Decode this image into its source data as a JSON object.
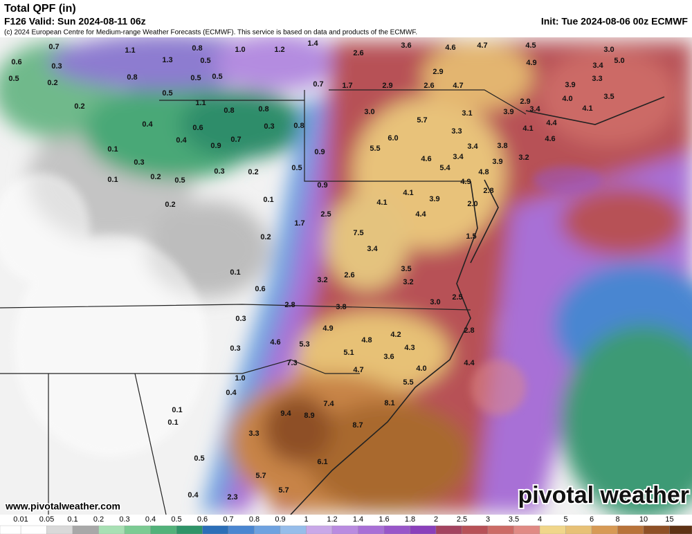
{
  "header": {
    "title": "Total QPF (in)",
    "valid": "F126 Valid: Sun 2024-08-11 06z",
    "init": "Init: Tue 2024-08-06 00z ECMWF",
    "copyright": "(c) 2024 European Centre for Medium-range Weather Forecasts (ECMWF). This service is based on data and products of the ECMWF."
  },
  "map": {
    "labels": [
      "0.7",
      "1.1",
      "1.3",
      "0.8",
      "1.0",
      "1.2",
      "1.4",
      "2.6",
      "3.6",
      "4.6",
      "4.7",
      "4.5",
      "3.0",
      "0.6",
      "0.3",
      "0.5",
      "4.9",
      "5.0",
      "3.4",
      "0.5",
      "0.2",
      "0.8",
      "0.5",
      "0.5",
      "2.9",
      "3.3",
      "0.7",
      "1.7",
      "2.9",
      "2.6",
      "4.7",
      "3.9",
      "0.5",
      "4.0",
      "3.5",
      "0.2",
      "1.1",
      "0.8",
      "0.8",
      "2.9",
      "3.4",
      "4.1",
      "3.0",
      "3.1",
      "3.9",
      "0.4",
      "0.6",
      "0.3",
      "0.8",
      "5.7",
      "3.3",
      "4.1",
      "4.4",
      "4.6",
      "0.4",
      "0.7",
      "6.0",
      "0.9",
      "0.1",
      "5.5",
      "0.9",
      "3.4",
      "3.8",
      "3.9",
      "3.2",
      "4.6",
      "3.4",
      "0.3",
      "0.5",
      "0.3",
      "0.2",
      "5.4",
      "4.8",
      "0.1",
      "0.2",
      "0.5",
      "0.9",
      "4.9",
      "2.8",
      "4.1",
      "0.2",
      "0.1",
      "4.1",
      "3.9",
      "2.0",
      "2.5",
      "4.4",
      "1.7",
      "7.5",
      "0.2",
      "1.5",
      "3.4",
      "0.1",
      "3.5",
      "2.6",
      "3.2",
      "3.2",
      "0.6",
      "2.5",
      "3.0",
      "2.8",
      "3.8",
      "0.3",
      "4.9",
      "4.2",
      "2.8",
      "4.8",
      "4.6",
      "5.3",
      "0.3",
      "4.3",
      "5.1",
      "3.6",
      "4.0",
      "4.4",
      "7.3",
      "4.7",
      "1.0",
      "5.5",
      "0.4",
      "7.4",
      "8.1",
      "9.4",
      "8.9",
      "0.1",
      "0.1",
      "8.7",
      "3.3",
      "0.5",
      "6.1",
      "5.7",
      "5.7",
      "0.4",
      "2.3"
    ]
  },
  "colorbar": [
    {
      "label": "0.01",
      "color": "#ffffff"
    },
    {
      "label": "0.05",
      "color": "#d9d9d9"
    },
    {
      "label": "0.1",
      "color": "#a8a8a8"
    },
    {
      "label": "0.2",
      "color": "#a8e0b4"
    },
    {
      "label": "0.3",
      "color": "#7ccb93"
    },
    {
      "label": "0.4",
      "color": "#52b27a"
    },
    {
      "label": "0.5",
      "color": "#2f9468"
    },
    {
      "label": "0.6",
      "color": "#2c6fb8"
    },
    {
      "label": "0.7",
      "color": "#4a86d1"
    },
    {
      "label": "0.8",
      "color": "#6ea2e0"
    },
    {
      "label": "0.9",
      "color": "#96bdea"
    },
    {
      "label": "1",
      "color": "#c9a8e8"
    },
    {
      "label": "1.2",
      "color": "#b98be0"
    },
    {
      "label": "1.4",
      "color": "#a86fd6"
    },
    {
      "label": "1.6",
      "color": "#9856c9"
    },
    {
      "label": "1.8",
      "color": "#8a40bb"
    },
    {
      "label": "2",
      "color": "#a34460"
    },
    {
      "label": "2.5",
      "color": "#b75157"
    },
    {
      "label": "3",
      "color": "#cc6b66"
    },
    {
      "label": "3.5",
      "color": "#e08a84"
    },
    {
      "label": "4",
      "color": "#f0d68a"
    },
    {
      "label": "5",
      "color": "#e7c176"
    },
    {
      "label": "6",
      "color": "#d79a55"
    },
    {
      "label": "8",
      "color": "#b8733a"
    },
    {
      "label": "10",
      "color": "#8e5026"
    },
    {
      "label": "15",
      "color": "#5e3214"
    }
  ],
  "footer": {
    "website": "www.pivotalweather.com",
    "logo": "pivotal weather"
  }
}
